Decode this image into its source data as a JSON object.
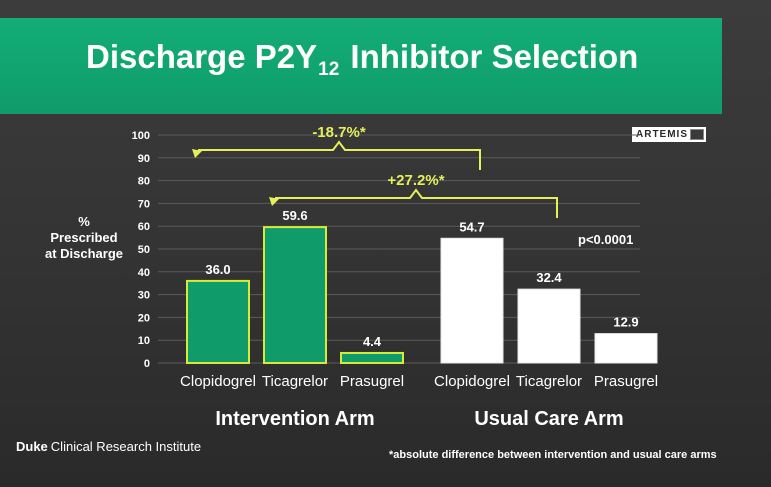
{
  "slide": {
    "title_main": "Discharge P2Y",
    "title_sub": "12",
    "title_tail": " Inhibitor Selection",
    "badge": "ARTEMIS",
    "ylabel_lines": [
      "%",
      "Prescribed",
      "at Discharge"
    ],
    "pvalue": "p<0.0001",
    "footer_org_bold": "Duke",
    "footer_org_rest": "Clinical Research Institute",
    "footnote": "*absolute difference between intervention and usual care arms",
    "colors": {
      "title_band": "#12a874",
      "intervention_bar": "#0f9c6a",
      "bar_outline": "#d7ea3a",
      "usual_bar": "#ffffff",
      "annotation": "#e5ef5a"
    }
  },
  "chart_data": {
    "type": "bar",
    "groups": [
      {
        "name": "Intervention Arm",
        "categories": [
          "Clopidogrel",
          "Ticagrelor",
          "Prasugrel"
        ],
        "values": [
          36.0,
          59.6,
          4.4
        ],
        "labels": [
          "36.0",
          "59.6",
          "4.4"
        ]
      },
      {
        "name": "Usual Care Arm",
        "categories": [
          "Clopidogrel",
          "Ticagrelor",
          "Prasugrel"
        ],
        "values": [
          54.7,
          32.4,
          12.9
        ],
        "labels": [
          "54.7",
          "32.4",
          "12.9"
        ]
      }
    ],
    "ylim": [
      0,
      100
    ],
    "yticks": [
      "0",
      "10",
      "20",
      "30",
      "40",
      "50",
      "60",
      "70",
      "80",
      "90",
      "100"
    ],
    "grid": true,
    "annotations": [
      {
        "text": "-18.7%*",
        "from": "Intervention Arm Clopidogrel",
        "to": "Usual Care Arm Clopidogrel"
      },
      {
        "text": "+27.2%*",
        "from": "Intervention Arm Ticagrelor",
        "to": "Usual Care Arm Ticagrelor"
      }
    ]
  }
}
